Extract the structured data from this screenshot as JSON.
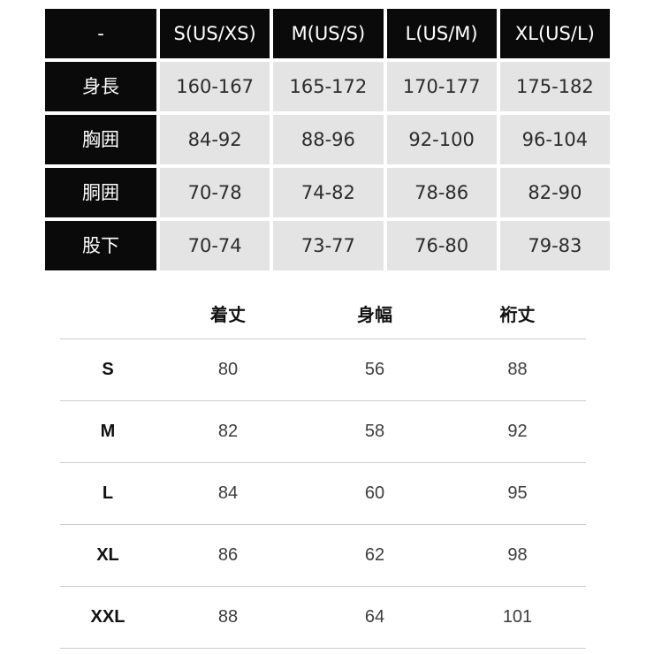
{
  "top_table": {
    "corner_label": "-",
    "columns": [
      "S(US/XS)",
      "M(US/S)",
      "L(US/M)",
      "XL(US/L)"
    ],
    "rows": [
      {
        "label": "身長",
        "values": [
          "160-167",
          "165-172",
          "170-177",
          "175-182"
        ]
      },
      {
        "label": "胸囲",
        "values": [
          "84-92",
          "88-96",
          "92-100",
          "96-104"
        ]
      },
      {
        "label": "胴囲",
        "values": [
          "70-78",
          "74-82",
          "78-86",
          "82-90"
        ]
      },
      {
        "label": "股下",
        "values": [
          "70-74",
          "73-77",
          "76-80",
          "79-83"
        ]
      }
    ],
    "colors": {
      "header_bg": "#0a0a0a",
      "header_text": "#ffffff",
      "cell_bg": "#e4e4e4",
      "cell_text": "#2b2b2b"
    }
  },
  "bottom_table": {
    "columns": [
      "着丈",
      "身幅",
      "裄丈"
    ],
    "rows": [
      {
        "label": "S",
        "values": [
          "80",
          "56",
          "88"
        ]
      },
      {
        "label": "M",
        "values": [
          "82",
          "58",
          "92"
        ]
      },
      {
        "label": "L",
        "values": [
          "84",
          "60",
          "95"
        ]
      },
      {
        "label": "XL",
        "values": [
          "86",
          "62",
          "98"
        ]
      },
      {
        "label": "XXL",
        "values": [
          "88",
          "64",
          "101"
        ]
      }
    ],
    "colors": {
      "divider": "#cccccc",
      "label_text": "#111111",
      "value_text": "#3d3d3d"
    }
  }
}
